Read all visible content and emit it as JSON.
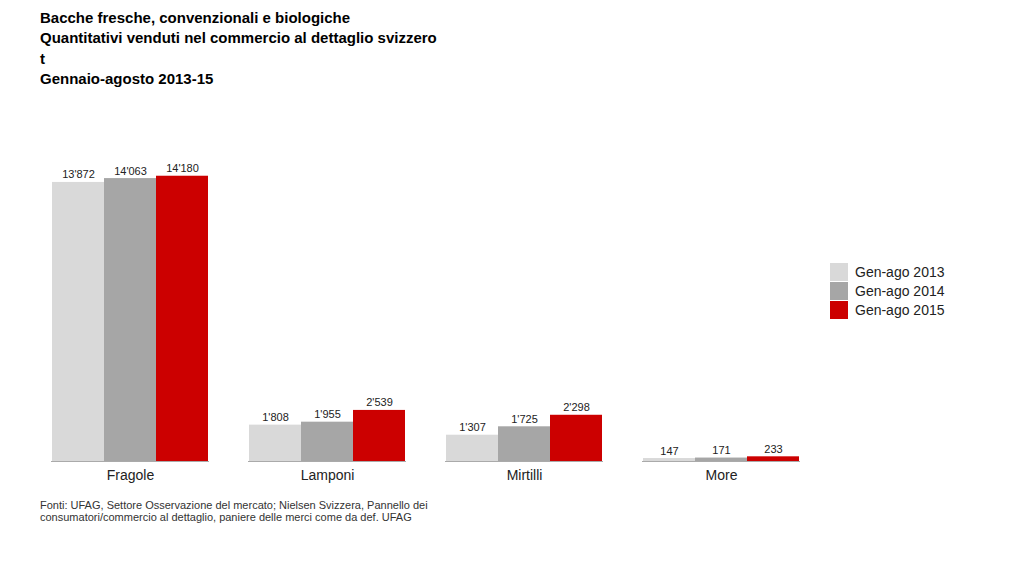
{
  "chart_data": {
    "type": "bar",
    "title": "Bacche fresche, convenzionali e biologiche\nQuantitativi venduti nel commercio al dettaglio svizzero\nt\nGennaio-agosto 2013-15",
    "caption": "Fonti: UFAG, Settore Osservazione del mercato; Nielsen Svizzera, Pannello dei\nconsumatori/commercio al dettaglio, paniere delle merci come da def. UFAG",
    "categories": [
      "Fragole",
      "Lamponi",
      "Mirtilli",
      "More"
    ],
    "series": [
      {
        "name": "Gen-ago 2013",
        "color": "#d9d9d9",
        "values": [
          13872,
          1808,
          1307,
          147
        ],
        "value_labels": [
          "13'872",
          "1'808",
          "1'307",
          "147"
        ]
      },
      {
        "name": "Gen-ago 2014",
        "color": "#a6a6a6",
        "values": [
          14063,
          1955,
          1725,
          171
        ],
        "value_labels": [
          "14'063",
          "1'955",
          "1'725",
          "171"
        ]
      },
      {
        "name": "Gen-ago 2015",
        "color": "#cc0000",
        "values": [
          14180,
          2539,
          2298,
          233
        ],
        "value_labels": [
          "14'180",
          "2'539",
          "2'298",
          "233"
        ]
      }
    ],
    "ylim": [
      0,
      17000
    ],
    "tick_labels": "x",
    "data_labels": true,
    "legend": "right",
    "grid": false
  }
}
